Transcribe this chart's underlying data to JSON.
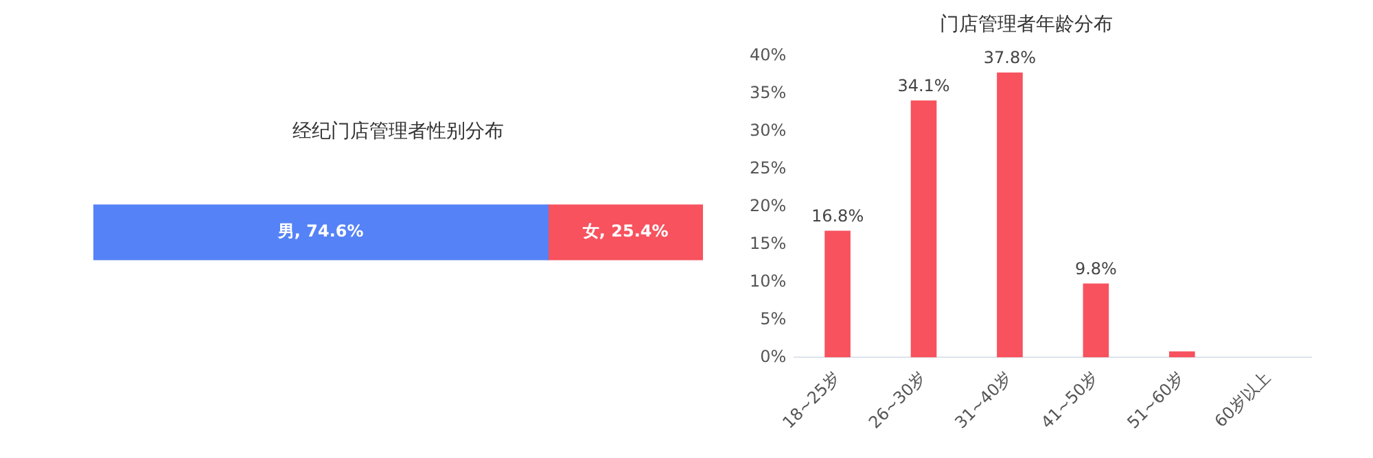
{
  "chart_data": [
    {
      "type": "bar",
      "title": "经纪门店管理者性别分布",
      "orientation": "horizontal",
      "stacked": true,
      "tick_labels": false,
      "categories": [
        null
      ],
      "series": [
        {
          "color": "#5582f6",
          "values": [
            74.6
          ],
          "value_labels": [
            "男, 74.6%"
          ]
        },
        {
          "color": "#f7525e",
          "values": [
            25.4
          ],
          "value_labels": [
            "女, 25.4%"
          ]
        }
      ]
    },
    {
      "type": "bar",
      "title": "门店管理者年龄分布",
      "categories": [
        "18~25岁",
        "26~30岁",
        "31~40岁",
        "41~50岁",
        "51~60岁",
        "60岁以上"
      ],
      "color": "#f7525e",
      "values": [
        16.8,
        34.1,
        37.8,
        9.8,
        0.8,
        0
      ],
      "value_labels": [
        "16.8%",
        "34.1%",
        "37.8%",
        "9.8%",
        null,
        null
      ],
      "ylim": [
        0,
        40
      ],
      "yticks": [
        {
          "value": 0,
          "label": "0%"
        },
        {
          "value": 5,
          "label": "5%"
        },
        {
          "value": 10,
          "label": "10%"
        },
        {
          "value": 15,
          "label": "15%"
        },
        {
          "value": 20,
          "label": "20%"
        },
        {
          "value": 25,
          "label": "25%"
        },
        {
          "value": 30,
          "label": "30%"
        },
        {
          "value": 35,
          "label": "35%"
        },
        {
          "value": 40,
          "label": "40%"
        }
      ],
      "grid": false
    }
  ]
}
